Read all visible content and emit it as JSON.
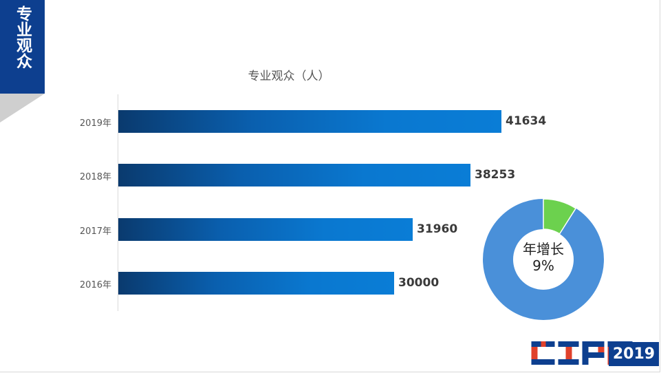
{
  "banner": {
    "title": "专业观众"
  },
  "chart_data": {
    "type": "bar",
    "orientation": "horizontal",
    "title": "专业观众（人）",
    "categories": [
      "2019年",
      "2018年",
      "2017年",
      "2016年"
    ],
    "values": [
      41634,
      38253,
      31960,
      30000
    ],
    "xlim": [
      0,
      48000
    ],
    "grid": false,
    "legend": "none"
  },
  "donut": {
    "label_line1": "年增长",
    "label_line2": "9%",
    "growth_fraction": 0.09,
    "colors": {
      "growth": "#6cd14e",
      "rest": "#4a90d9"
    }
  },
  "logo": {
    "text": "CIPE",
    "year": "2019",
    "colors": {
      "blue": "#0d3f8f",
      "red": "#e0412b"
    }
  }
}
